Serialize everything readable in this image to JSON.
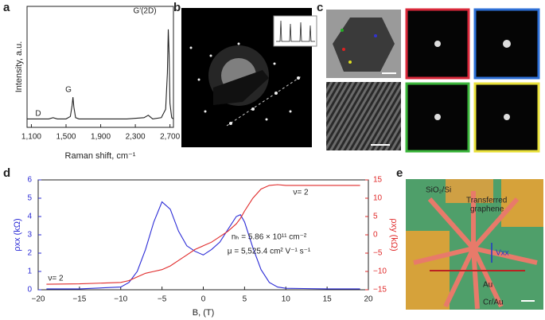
{
  "panels": {
    "letters": [
      "a",
      "b",
      "c",
      "d",
      "e"
    ]
  },
  "chart_data": [
    {
      "type": "line",
      "xlabel": "Raman shift, cm⁻¹",
      "ylabel": "Intensity, a.u.",
      "x": [
        1050,
        1100,
        1200,
        1300,
        1350,
        1400,
        1500,
        1550,
        1570,
        1580,
        1590,
        1610,
        1650,
        1800,
        2000,
        2200,
        2400,
        2450,
        2500,
        2600,
        2650,
        2670,
        2680,
        2690,
        2700,
        2720,
        2740
      ],
      "series": [
        {
          "color": "#222222",
          "values": [
            0.07,
            0.07,
            0.07,
            0.07,
            0.08,
            0.07,
            0.07,
            0.09,
            0.18,
            0.25,
            0.17,
            0.08,
            0.07,
            0.07,
            0.07,
            0.07,
            0.08,
            0.1,
            0.07,
            0.08,
            0.15,
            0.45,
            0.81,
            0.6,
            0.2,
            0.08,
            0.07
          ]
        }
      ],
      "xlim": [
        1050,
        2740
      ],
      "ylim": [
        0,
        1
      ],
      "xticks": [
        {
          "value": 1100,
          "label": "1,100"
        },
        {
          "value": 1500,
          "label": "1,500"
        },
        {
          "value": 1900,
          "label": "1,900"
        },
        {
          "value": 2300,
          "label": "2,300"
        },
        {
          "value": 2700,
          "label": "2,700"
        }
      ],
      "annotations": [
        "D",
        "G",
        "G′(2D)"
      ]
    },
    {
      "type": "line",
      "xlabel": "B, (T)",
      "ylabel": "ρxx (kΩ)",
      "y2label": "ρxy (kΩ)",
      "x": [
        -19,
        -15,
        -10,
        -9,
        -8,
        -7,
        -6,
        -5,
        -4,
        -3,
        -2,
        -1,
        0,
        1,
        2,
        3,
        4,
        4.5,
        5,
        6,
        7,
        8,
        9,
        10,
        15,
        19
      ],
      "series": [
        {
          "color": "#2b2bd6",
          "values": [
            0.05,
            0.05,
            0.15,
            0.4,
            1.0,
            2.2,
            3.7,
            4.8,
            4.4,
            3.2,
            2.4,
            2.1,
            1.9,
            2.2,
            2.6,
            3.3,
            4.0,
            4.1,
            3.7,
            2.3,
            1.1,
            0.4,
            0.15,
            0.08,
            0.05,
            0.05
          ]
        },
        {
          "color": "#e02a2a",
          "axis": "y2",
          "values": [
            -13.5,
            -13.4,
            -13,
            -12.5,
            -11.5,
            -10.5,
            -10,
            -9.5,
            -8.5,
            -7,
            -5.5,
            -4,
            -3,
            -2,
            -0.5,
            1,
            3,
            4.5,
            6.5,
            10,
            12.5,
            13.5,
            13.7,
            13.5,
            13.5,
            13.5
          ]
        }
      ],
      "xlim": [
        -20,
        20
      ],
      "ylim": [
        0,
        6
      ],
      "y2lim": [
        -15,
        15
      ],
      "xticks": [
        {
          "value": -20,
          "label": "−20"
        },
        {
          "value": -15,
          "label": "−15"
        },
        {
          "value": -10,
          "label": "−10"
        },
        {
          "value": -5,
          "label": "−5"
        },
        0,
        5,
        10,
        15,
        20
      ],
      "yticks": [
        0,
        1,
        2,
        3,
        4,
        5,
        6
      ],
      "y2ticks": [
        {
          "value": -15,
          "label": "−15"
        },
        {
          "value": -10,
          "label": "−10"
        },
        {
          "value": -5,
          "label": "−5"
        },
        0,
        5,
        10,
        15
      ],
      "annotations": [
        "ν= 2",
        "ν= 2",
        "nₕ = 5.86 × 10¹¹ cm⁻²",
        "μ = 5,525.4 cm² V⁻¹ s⁻¹"
      ]
    }
  ],
  "micrograph": {
    "labels": [
      "SiO₂/Si",
      "Transferred",
      "graphene",
      "Au",
      "Cr/Au",
      "Vxx"
    ]
  }
}
